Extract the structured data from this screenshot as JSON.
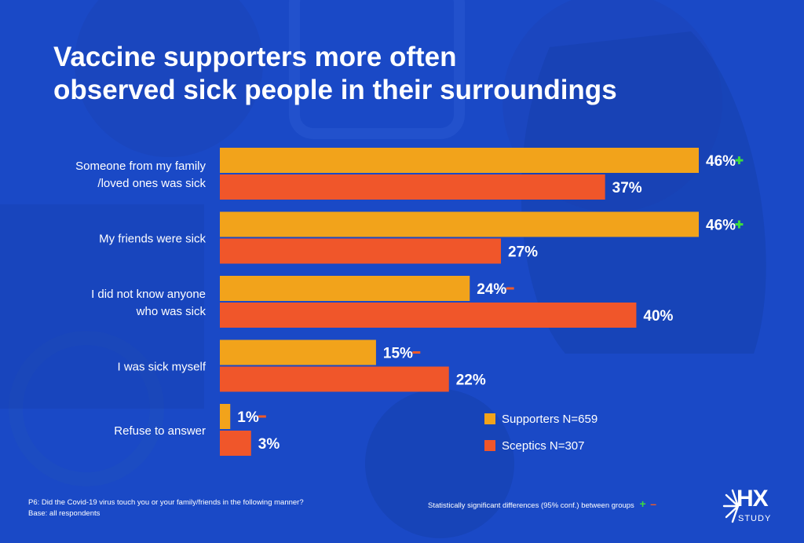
{
  "title_lines": [
    "Vaccine supporters more often",
    "observed sick people in their surroundings"
  ],
  "colors": {
    "background": "#1a49c6",
    "supporters": "#f2a31b",
    "sceptics": "#f0562a",
    "plus": "#3ddc3d",
    "minus": "#f05a28",
    "text": "#ffffff"
  },
  "chart_data": {
    "type": "bar",
    "orientation": "horizontal",
    "categories": [
      [
        "Someone from my family",
        "/loved ones was sick"
      ],
      [
        "My friends were sick"
      ],
      [
        "I did not know anyone",
        "who was sick"
      ],
      [
        "I was sick myself"
      ],
      [
        "Refuse to answer"
      ]
    ],
    "series": [
      {
        "name": "Supporters N=659",
        "color": "#f2a31b",
        "values": [
          46,
          46,
          24,
          15,
          1
        ],
        "labels": [
          "46%",
          "46%",
          "24%",
          "15%",
          "1%"
        ],
        "significance": [
          "+",
          "+",
          "-",
          "-",
          "-"
        ]
      },
      {
        "name": "Sceptics N=307",
        "color": "#f0562a",
        "values": [
          37,
          27,
          40,
          22,
          3
        ],
        "labels": [
          "37%",
          "27%",
          "40%",
          "22%",
          "3%"
        ],
        "significance": [
          "",
          "",
          "",
          "",
          ""
        ]
      }
    ],
    "xlim": [
      0,
      46
    ],
    "grid": false,
    "legend": "bottom-right"
  },
  "footer": {
    "question": "P6: Did the Covid-19 virus touch you or your family/friends in the following manner?",
    "base": "Base: all respondents",
    "significance_note": "Statistically significant differences (95% conf.) between groups",
    "plus_symbol": "+",
    "minus_symbol": "–"
  },
  "logo": {
    "main": "HX",
    "sub": "STUDY"
  }
}
